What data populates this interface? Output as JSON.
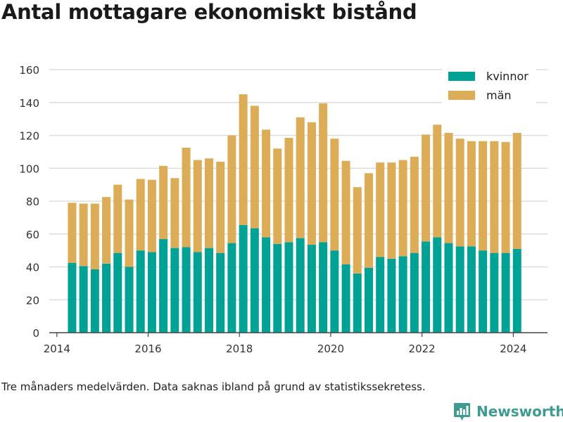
{
  "title": "Antal mottagare ekonomiskt bistånd",
  "footnote": "Tre månaders medelvärden. Data saknas ibland på grund av statistikssekretess.",
  "brand": {
    "name": "Newsworthy",
    "color": "#3d9b90"
  },
  "chart_data": {
    "type": "bar",
    "stacked": true,
    "x_axis_type": "date",
    "x": [
      "2014-05",
      "2014-08",
      "2014-11",
      "2015-02",
      "2015-05",
      "2015-08",
      "2015-11",
      "2016-02",
      "2016-05",
      "2016-08",
      "2016-11",
      "2017-02",
      "2017-05",
      "2017-08",
      "2017-11",
      "2018-02",
      "2018-05",
      "2018-08",
      "2018-11",
      "2019-02",
      "2019-05",
      "2019-08",
      "2019-11",
      "2020-02",
      "2020-05",
      "2020-08",
      "2020-11",
      "2021-02",
      "2021-05",
      "2021-08",
      "2021-11",
      "2022-02",
      "2022-05",
      "2022-08",
      "2022-11",
      "2023-02",
      "2023-05",
      "2023-08",
      "2023-11",
      "2024-02"
    ],
    "series": [
      {
        "name": "kvinnor",
        "color": "#00a295",
        "values": [
          42.5,
          40.5,
          38.5,
          42,
          48.5,
          40,
          50,
          49,
          57,
          51.5,
          52,
          49,
          51.5,
          48.5,
          54.5,
          65.5,
          63.5,
          58,
          54,
          55,
          57.5,
          53.5,
          55,
          50,
          41.5,
          36,
          39.5,
          46,
          45,
          46.5,
          48.5,
          55.5,
          58,
          54.5,
          52.5,
          52.5,
          50,
          48.5,
          48.5,
          51
        ]
      },
      {
        "name": "män",
        "color": "#dcac56",
        "values": [
          36.5,
          38,
          40,
          40.5,
          41.5,
          41,
          43.5,
          44,
          44.5,
          42.5,
          60.5,
          56,
          54.5,
          55.5,
          65.5,
          79.5,
          74.5,
          65.5,
          58,
          63.5,
          73.5,
          74.5,
          84.5,
          68,
          63,
          52.5,
          57.5,
          57.5,
          58.5,
          58.5,
          58.5,
          65,
          68.5,
          67,
          65.5,
          64,
          66.5,
          68,
          67.5,
          70.5
        ]
      }
    ],
    "y_ticks": [
      0,
      20,
      40,
      60,
      80,
      100,
      120,
      140,
      160
    ],
    "x_ticks": [
      "2014",
      "2016",
      "2018",
      "2020",
      "2022",
      "2024"
    ],
    "ylim": [
      0,
      160
    ],
    "xlim": [
      "2013-11",
      "2024-10"
    ],
    "grid": true,
    "legend_position": "top-right"
  }
}
